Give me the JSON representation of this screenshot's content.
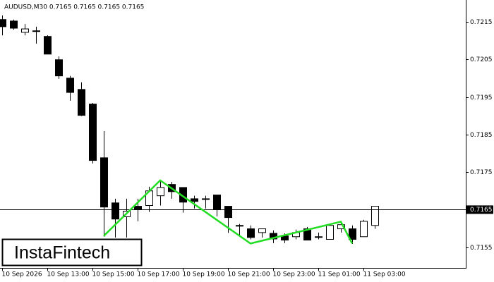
{
  "chart_data": {
    "type": "candlestick",
    "title": "AUDUSD,M30  0.7165 0.7165 0.7165 0.7165",
    "watermark": "InstaFintech",
    "categories": [
      "10 Sep 2026",
      null,
      null,
      null,
      "10 Sep 13:00",
      null,
      null,
      null,
      "10 Sep 15:00",
      null,
      null,
      null,
      "10 Sep 17:00",
      null,
      null,
      null,
      "10 Sep 19:00",
      null,
      null,
      null,
      "10 Sep 21:00",
      null,
      null,
      null,
      "10 Sep 23:00",
      null,
      null,
      null,
      "11 Sep 01:00",
      null,
      null,
      null,
      "11 Sep 03:00",
      null
    ],
    "open": [
      0.72156,
      0.72152,
      0.72122,
      0.72126,
      0.72111,
      0.72049,
      0.72,
      0.7197,
      0.71931,
      0.71788,
      0.71668,
      0.71631,
      0.71659,
      0.71661,
      0.71687,
      0.71717,
      0.71709,
      0.71679,
      0.71679,
      0.71689,
      0.71659,
      0.71608,
      0.71599,
      0.71589,
      0.71587,
      0.7158,
      0.71578,
      0.71599,
      0.71578,
      0.71571,
      0.71599,
      0.71599,
      0.71578,
      0.71608
    ],
    "high": [
      0.72167,
      0.72156,
      0.72144,
      0.72137,
      0.72114,
      0.72058,
      0.72006,
      0.71989,
      0.71934,
      0.71859,
      0.71679,
      0.71679,
      0.71679,
      0.71711,
      0.71728,
      0.71724,
      0.71709,
      0.71687,
      0.71687,
      0.71689,
      0.71659,
      0.71612,
      0.71608,
      0.71599,
      0.71595,
      0.71587,
      0.71597,
      0.71604,
      0.71589,
      0.71608,
      0.71618,
      0.71608,
      0.71623,
      0.71659
    ],
    "low": [
      0.72114,
      0.72129,
      0.72114,
      0.72092,
      0.72064,
      0.71998,
      0.7194,
      0.71899,
      0.71773,
      0.71578,
      0.71576,
      0.71576,
      0.71619,
      0.71644,
      0.71661,
      0.71679,
      0.71642,
      0.71653,
      0.71653,
      0.71632,
      0.71588,
      0.71578,
      0.71571,
      0.71576,
      0.71561,
      0.71561,
      0.71571,
      0.71569,
      0.71571,
      0.71571,
      0.71589,
      0.71559,
      0.71578,
      0.71599
    ],
    "close": [
      0.72137,
      0.72133,
      0.72131,
      0.72125,
      0.72064,
      0.72006,
      0.71962,
      0.71901,
      0.71781,
      0.71657,
      0.71625,
      0.71646,
      0.71651,
      0.717,
      0.71709,
      0.71698,
      0.7167,
      0.71672,
      0.71679,
      0.71651,
      0.71629,
      0.71608,
      0.71576,
      0.71599,
      0.71572,
      0.71569,
      0.71589,
      0.71569,
      0.71578,
      0.71608,
      0.7161,
      0.71571,
      0.71619,
      0.71659
    ],
    "pattern": {
      "color": "#22dd22",
      "index": [
        9,
        14,
        22,
        30,
        31
      ],
      "values": [
        0.7158,
        0.71728,
        0.7156,
        0.71618,
        0.7156
      ]
    },
    "last_price": 0.7165,
    "ylim": [
      0.71495,
      0.72208
    ],
    "yticks": [
      0.7215,
      0.7205,
      0.7195,
      0.7185,
      0.7175,
      0.7155
    ]
  }
}
